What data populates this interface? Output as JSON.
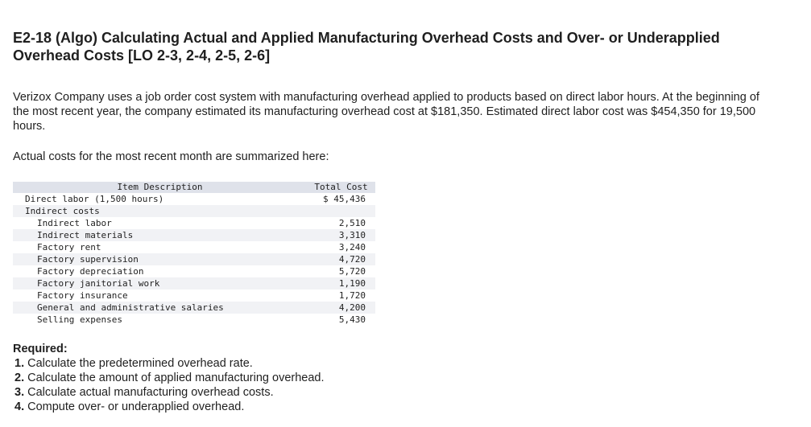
{
  "title": "E2-18 (Algo) Calculating Actual and Applied Manufacturing Overhead Costs and Over- or Underapplied Overhead Costs [LO 2-3, 2-4, 2-5, 2-6]",
  "intro": "Verizox Company uses a job order cost system with manufacturing overhead applied to products based on direct labor hours. At the beginning of the most recent year, the company estimated its manufacturing overhead cost at $181,350. Estimated direct labor cost was $454,350 for 19,500 hours.",
  "summary": "Actual costs for the most recent month are summarized here:",
  "table": {
    "headers": [
      "Item Description",
      "Total Cost"
    ],
    "rows": [
      {
        "desc": "Direct labor (1,500 hours)",
        "amount": "$ 45,436",
        "level": 0,
        "shade": false
      },
      {
        "desc": "Indirect costs",
        "amount": "",
        "level": 0,
        "shade": true
      },
      {
        "desc": "Indirect labor",
        "amount": "2,510",
        "level": 1,
        "shade": false
      },
      {
        "desc": "Indirect materials",
        "amount": "3,310",
        "level": 1,
        "shade": true
      },
      {
        "desc": "Factory rent",
        "amount": "3,240",
        "level": 1,
        "shade": false
      },
      {
        "desc": "Factory supervision",
        "amount": "4,720",
        "level": 1,
        "shade": true
      },
      {
        "desc": "Factory depreciation",
        "amount": "5,720",
        "level": 1,
        "shade": false
      },
      {
        "desc": "Factory janitorial work",
        "amount": "1,190",
        "level": 1,
        "shade": true
      },
      {
        "desc": "Factory insurance",
        "amount": "1,720",
        "level": 1,
        "shade": false
      },
      {
        "desc": "General and administrative salaries",
        "amount": "4,200",
        "level": 1,
        "shade": true
      },
      {
        "desc": "Selling expenses",
        "amount": "5,430",
        "level": 1,
        "shade": false
      }
    ]
  },
  "required": {
    "heading": "Required:",
    "items": [
      {
        "num": "1.",
        "text": "Calculate the predetermined overhead rate."
      },
      {
        "num": "2.",
        "text": "Calculate the amount of applied manufacturing overhead."
      },
      {
        "num": "3.",
        "text": "Calculate actual manufacturing overhead costs."
      },
      {
        "num": "4.",
        "text": "Compute over- or underapplied overhead."
      }
    ]
  }
}
